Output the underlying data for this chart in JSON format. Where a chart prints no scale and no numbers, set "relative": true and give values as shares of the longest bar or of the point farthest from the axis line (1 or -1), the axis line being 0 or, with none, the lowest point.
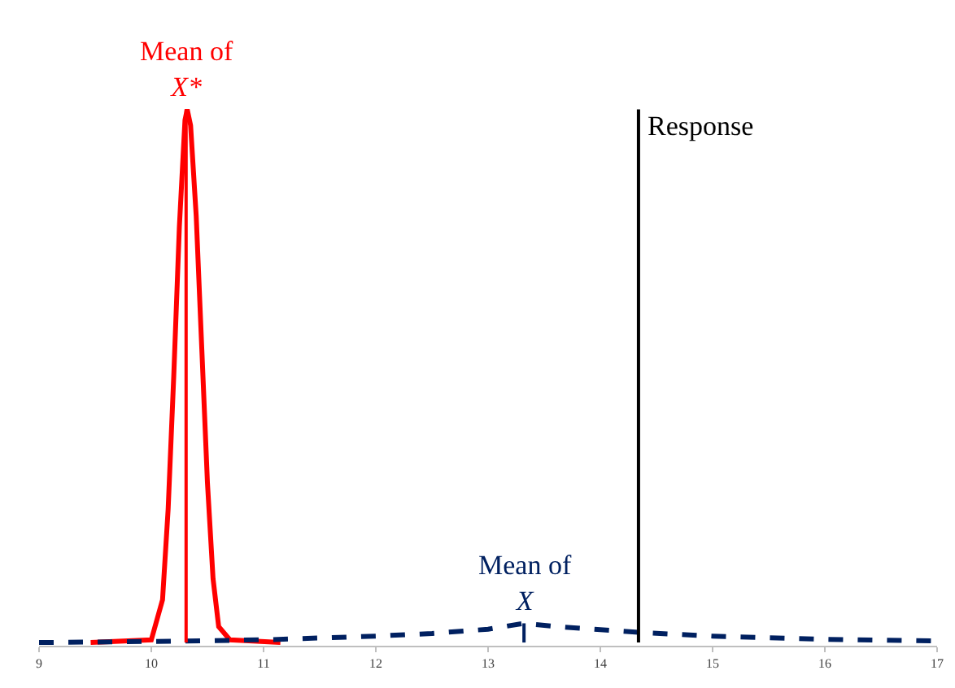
{
  "chart_data": {
    "type": "line",
    "relative": true,
    "marker": "none",
    "xlim": [
      9,
      17
    ],
    "xticks": [
      9,
      10,
      11,
      12,
      13,
      14,
      15,
      16,
      17
    ],
    "series": [
      {
        "color": "#ff0000",
        "line_style": "solid",
        "x": [
          9.46,
          10.0,
          10.1,
          10.15,
          10.2,
          10.25,
          10.3,
          10.32,
          10.35,
          10.4,
          10.45,
          10.5,
          10.55,
          10.6,
          10.7,
          11.15
        ],
        "values": [
          0,
          0.005,
          0.08,
          0.25,
          0.5,
          0.78,
          0.98,
          1.0,
          0.97,
          0.8,
          0.55,
          0.3,
          0.12,
          0.03,
          0.005,
          0
        ]
      },
      {
        "color": "#002060",
        "line_style": "dashed",
        "x": [
          9,
          10,
          11,
          12,
          12.5,
          13,
          13.32,
          13.6,
          14,
          14.34,
          15,
          16,
          17
        ],
        "values": [
          0,
          0.002,
          0.005,
          0.012,
          0.017,
          0.025,
          0.036,
          0.03,
          0.024,
          0.019,
          0.012,
          0.006,
          0.003
        ]
      },
      {
        "color": "#ff0000",
        "line_style": "solid",
        "x": [
          10.31,
          10.31
        ],
        "values": [
          0,
          1.0
        ]
      },
      {
        "color": "#002060",
        "line_style": "solid",
        "x": [
          13.32,
          13.32
        ],
        "values": [
          0,
          0.036
        ]
      },
      {
        "color": "#000000",
        "line_style": "solid",
        "x": [
          14.34,
          14.34
        ],
        "values": [
          0,
          1.0
        ]
      }
    ],
    "annotations": [
      {
        "text": "Mean of\nX*",
        "x": 10.31,
        "y": 1.0
      },
      {
        "text": "Mean of\nX",
        "x": 13.32,
        "y": 0.036
      },
      {
        "text": "Response",
        "x": 14.34,
        "y": 0.97
      }
    ]
  }
}
